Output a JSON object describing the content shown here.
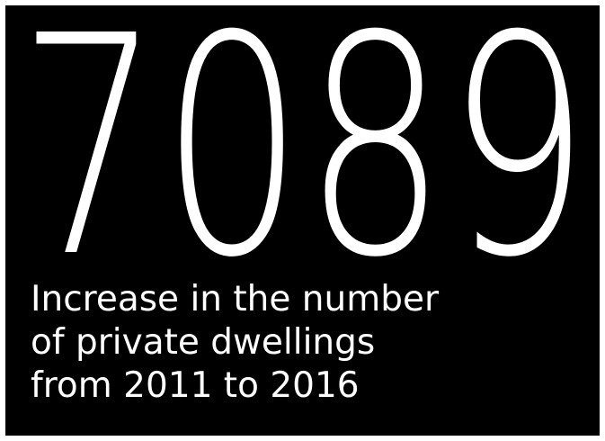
{
  "stat": {
    "value": "7089",
    "caption_lines": [
      "Increase in the number",
      "of private dwellings",
      "from 2011 to 2016"
    ]
  },
  "colors": {
    "background": "#000000",
    "text": "#ffffff",
    "frame": "#ffffff"
  }
}
